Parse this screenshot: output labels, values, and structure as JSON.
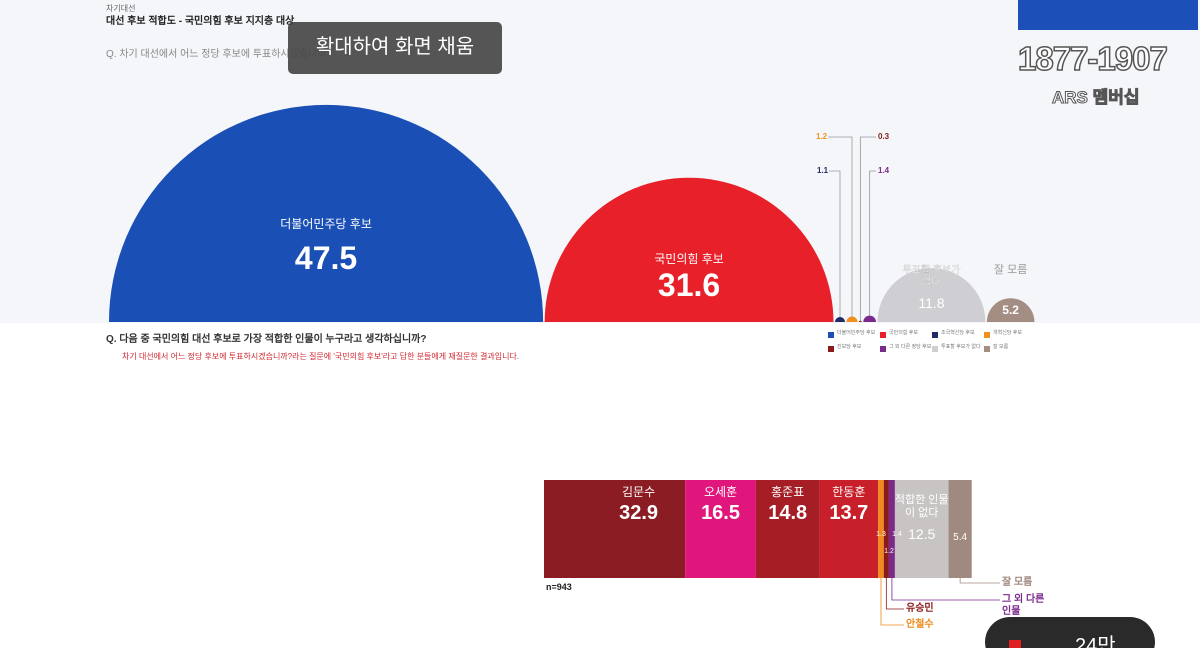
{
  "header": {
    "kicker": "차기대선",
    "title": "대선 후보 적합도 - 국민의힘 후보 지지층 대상"
  },
  "toast": "확대하여 화면 채움",
  "channel": {
    "phone": "1877-1907",
    "label": "ARS 멤버십"
  },
  "viewer_badge": "24만",
  "chart_data": [
    {
      "type": "semicircle",
      "title": "Q. 차기 대선에서 어느 정당 후보에 투표하시겠습니까?",
      "categories": [
        "더불어민주당 후보",
        "국민의힘 후보",
        "조국혁신당 후보",
        "개혁신당 후보",
        "진보당 후보",
        "그 외 다른 정당 후보",
        "투표할 후보가 없다",
        "잘 모름"
      ],
      "values": [
        47.5,
        31.6,
        1.1,
        1.2,
        0.3,
        1.4,
        11.8,
        5.2
      ],
      "colors": [
        "#1a4fb5",
        "#e8202a",
        "#1f2a66",
        "#f0901e",
        "#8b1a1a",
        "#7b2a8c",
        "#cfcfd3",
        "#a48e84"
      ]
    },
    {
      "type": "stacked-bar",
      "title": "Q. 다음 중 국민의힘 대선 후보로 가장 적합한 인물이 누구라고 생각하십니까?",
      "subtitle": "차기 대선에서 어느 정당 후보에 투표하시겠습니까?라는 질문에 '국민의힘 후보'라고 답한 분들에게 재질문한 결과입니다.",
      "note": "n=943",
      "categories": [
        "김문수",
        "오세훈",
        "홍준표",
        "한동훈",
        "안철수",
        "유승민",
        "그 외 다른인물",
        "적합한 인물이 없다",
        "잘 모름"
      ],
      "values": [
        32.9,
        16.5,
        14.8,
        13.7,
        1.3,
        1.2,
        1.4,
        12.5,
        5.4
      ],
      "colors": [
        "#8c1c23",
        "#e0167c",
        "#a51d25",
        "#c8202b",
        "#f08a1c",
        "#8b1a1a",
        "#7b2a8c",
        "#c9c4c4",
        "#a08a80"
      ]
    }
  ]
}
